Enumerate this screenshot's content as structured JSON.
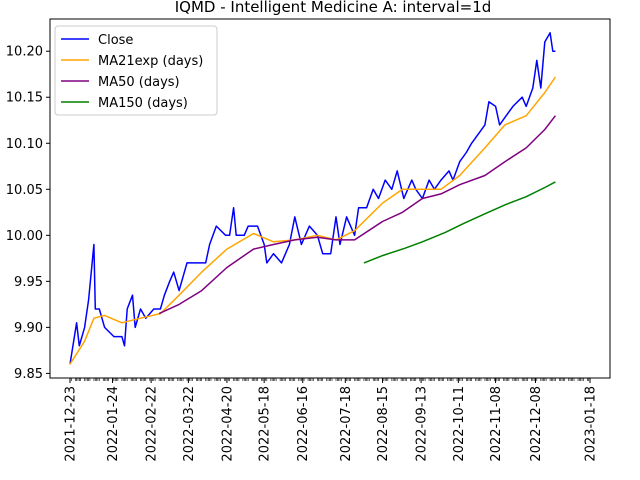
{
  "chart_data": {
    "type": "line",
    "title": "IQMD - Intelligent Medicine A: interval=1d",
    "xlabel": "",
    "ylabel": "",
    "ylim": [
      9.845,
      10.235
    ],
    "grid": false,
    "legend_placement": "top-left",
    "x_tick_labels": [
      "2021-12-23",
      "2022-01-24",
      "2022-02-22",
      "2022-03-22",
      "2022-04-20",
      "2022-05-18",
      "2022-06-16",
      "2022-07-18",
      "2022-08-15",
      "2022-09-13",
      "2022-10-11",
      "2022-11-08",
      "2022-12-08",
      "2023-01-18"
    ],
    "y_ticks": [
      "9.85",
      "9.90",
      "9.95",
      "10.00",
      "10.05",
      "10.10",
      "10.15",
      "10.20"
    ],
    "x_start": "2021-12-23",
    "x_end": "2023-01-18",
    "series": [
      {
        "name": "Close",
        "color": "#0000ff",
        "points": [
          [
            "2021-12-23",
            9.86
          ],
          [
            "2021-12-28",
            9.905
          ],
          [
            "2021-12-30",
            9.88
          ],
          [
            "2022-01-03",
            9.9
          ],
          [
            "2022-01-06",
            9.93
          ],
          [
            "2022-01-10",
            9.99
          ],
          [
            "2022-01-11",
            9.92
          ],
          [
            "2022-01-14",
            9.92
          ],
          [
            "2022-01-18",
            9.9
          ],
          [
            "2022-01-25",
            9.89
          ],
          [
            "2022-01-31",
            9.89
          ],
          [
            "2022-02-02",
            9.88
          ],
          [
            "2022-02-04",
            9.92
          ],
          [
            "2022-02-08",
            9.935
          ],
          [
            "2022-02-10",
            9.9
          ],
          [
            "2022-02-14",
            9.92
          ],
          [
            "2022-02-18",
            9.91
          ],
          [
            "2022-02-24",
            9.92
          ],
          [
            "2022-03-01",
            9.92
          ],
          [
            "2022-03-04",
            9.935
          ],
          [
            "2022-03-08",
            9.95
          ],
          [
            "2022-03-11",
            9.96
          ],
          [
            "2022-03-15",
            9.94
          ],
          [
            "2022-03-21",
            9.97
          ],
          [
            "2022-03-28",
            9.97
          ],
          [
            "2022-04-04",
            9.97
          ],
          [
            "2022-04-07",
            9.99
          ],
          [
            "2022-04-12",
            10.01
          ],
          [
            "2022-04-19",
            10.0
          ],
          [
            "2022-04-22",
            10.0
          ],
          [
            "2022-04-25",
            10.03
          ],
          [
            "2022-04-27",
            10.0
          ],
          [
            "2022-05-03",
            10.0
          ],
          [
            "2022-05-06",
            10.01
          ],
          [
            "2022-05-10",
            10.01
          ],
          [
            "2022-05-13",
            10.01
          ],
          [
            "2022-05-18",
            9.99
          ],
          [
            "2022-05-20",
            9.97
          ],
          [
            "2022-05-25",
            9.98
          ],
          [
            "2022-05-31",
            9.97
          ],
          [
            "2022-06-06",
            9.99
          ],
          [
            "2022-06-10",
            10.02
          ],
          [
            "2022-06-15",
            9.99
          ],
          [
            "2022-06-21",
            10.01
          ],
          [
            "2022-06-27",
            10.0
          ],
          [
            "2022-07-01",
            9.98
          ],
          [
            "2022-07-07",
            9.98
          ],
          [
            "2022-07-11",
            10.02
          ],
          [
            "2022-07-14",
            9.99
          ],
          [
            "2022-07-19",
            10.02
          ],
          [
            "2022-07-25",
            10.0
          ],
          [
            "2022-07-28",
            10.03
          ],
          [
            "2022-08-03",
            10.03
          ],
          [
            "2022-08-08",
            10.05
          ],
          [
            "2022-08-12",
            10.04
          ],
          [
            "2022-08-17",
            10.06
          ],
          [
            "2022-08-22",
            10.05
          ],
          [
            "2022-08-26",
            10.07
          ],
          [
            "2022-08-31",
            10.04
          ],
          [
            "2022-09-06",
            10.06
          ],
          [
            "2022-09-09",
            10.05
          ],
          [
            "2022-09-14",
            10.04
          ],
          [
            "2022-09-19",
            10.06
          ],
          [
            "2022-09-23",
            10.05
          ],
          [
            "2022-09-28",
            10.06
          ],
          [
            "2022-10-04",
            10.07
          ],
          [
            "2022-10-07",
            10.06
          ],
          [
            "2022-10-12",
            10.08
          ],
          [
            "2022-10-17",
            10.09
          ],
          [
            "2022-10-21",
            10.1
          ],
          [
            "2022-10-26",
            10.11
          ],
          [
            "2022-10-31",
            10.12
          ],
          [
            "2022-11-03",
            10.145
          ],
          [
            "2022-11-08",
            10.14
          ],
          [
            "2022-11-11",
            10.12
          ],
          [
            "2022-11-16",
            10.13
          ],
          [
            "2022-11-21",
            10.14
          ],
          [
            "2022-11-28",
            10.15
          ],
          [
            "2022-12-01",
            10.14
          ],
          [
            "2022-12-06",
            10.16
          ],
          [
            "2022-12-09",
            10.19
          ],
          [
            "2022-12-12",
            10.16
          ],
          [
            "2022-12-15",
            10.21
          ],
          [
            "2022-12-19",
            10.22
          ],
          [
            "2022-12-21",
            10.2
          ],
          [
            "2022-12-23",
            10.2
          ]
        ]
      },
      {
        "name": "MA21exp (days)",
        "color": "#ffa500",
        "points": [
          [
            "2021-12-23",
            9.86
          ],
          [
            "2022-01-03",
            9.885
          ],
          [
            "2022-01-10",
            9.91
          ],
          [
            "2022-01-18",
            9.913
          ],
          [
            "2022-01-31",
            9.905
          ],
          [
            "2022-02-14",
            9.91
          ],
          [
            "2022-03-01",
            9.915
          ],
          [
            "2022-03-15",
            9.935
          ],
          [
            "2022-04-01",
            9.96
          ],
          [
            "2022-04-20",
            9.985
          ],
          [
            "2022-05-10",
            10.002
          ],
          [
            "2022-05-25",
            9.993
          ],
          [
            "2022-06-10",
            9.995
          ],
          [
            "2022-06-27",
            10.0
          ],
          [
            "2022-07-11",
            9.995
          ],
          [
            "2022-07-25",
            10.005
          ],
          [
            "2022-08-15",
            10.035
          ],
          [
            "2022-08-30",
            10.05
          ],
          [
            "2022-09-14",
            10.05
          ],
          [
            "2022-09-28",
            10.05
          ],
          [
            "2022-10-12",
            10.065
          ],
          [
            "2022-10-31",
            10.095
          ],
          [
            "2022-11-15",
            10.12
          ],
          [
            "2022-12-01",
            10.13
          ],
          [
            "2022-12-15",
            10.155
          ],
          [
            "2022-12-23",
            10.172
          ]
        ]
      },
      {
        "name": "MA50 (days)",
        "color": "#800080",
        "points": [
          [
            "2022-02-28",
            9.915
          ],
          [
            "2022-03-15",
            9.925
          ],
          [
            "2022-04-01",
            9.94
          ],
          [
            "2022-04-20",
            9.965
          ],
          [
            "2022-05-10",
            9.985
          ],
          [
            "2022-05-25",
            9.99
          ],
          [
            "2022-06-10",
            9.995
          ],
          [
            "2022-06-27",
            9.998
          ],
          [
            "2022-07-11",
            9.995
          ],
          [
            "2022-07-25",
            9.995
          ],
          [
            "2022-08-15",
            10.015
          ],
          [
            "2022-08-30",
            10.025
          ],
          [
            "2022-09-14",
            10.04
          ],
          [
            "2022-09-28",
            10.045
          ],
          [
            "2022-10-12",
            10.055
          ],
          [
            "2022-10-31",
            10.065
          ],
          [
            "2022-11-15",
            10.08
          ],
          [
            "2022-12-01",
            10.095
          ],
          [
            "2022-12-15",
            10.115
          ],
          [
            "2022-12-23",
            10.13
          ]
        ]
      },
      {
        "name": "MA150 (days)",
        "color": "#008000",
        "points": [
          [
            "2022-08-01",
            9.97
          ],
          [
            "2022-08-15",
            9.978
          ],
          [
            "2022-09-01",
            9.986
          ],
          [
            "2022-09-14",
            9.993
          ],
          [
            "2022-10-01",
            10.003
          ],
          [
            "2022-10-15",
            10.013
          ],
          [
            "2022-11-01",
            10.024
          ],
          [
            "2022-11-15",
            10.033
          ],
          [
            "2022-12-01",
            10.042
          ],
          [
            "2022-12-15",
            10.052
          ],
          [
            "2022-12-23",
            10.058
          ]
        ]
      }
    ]
  }
}
